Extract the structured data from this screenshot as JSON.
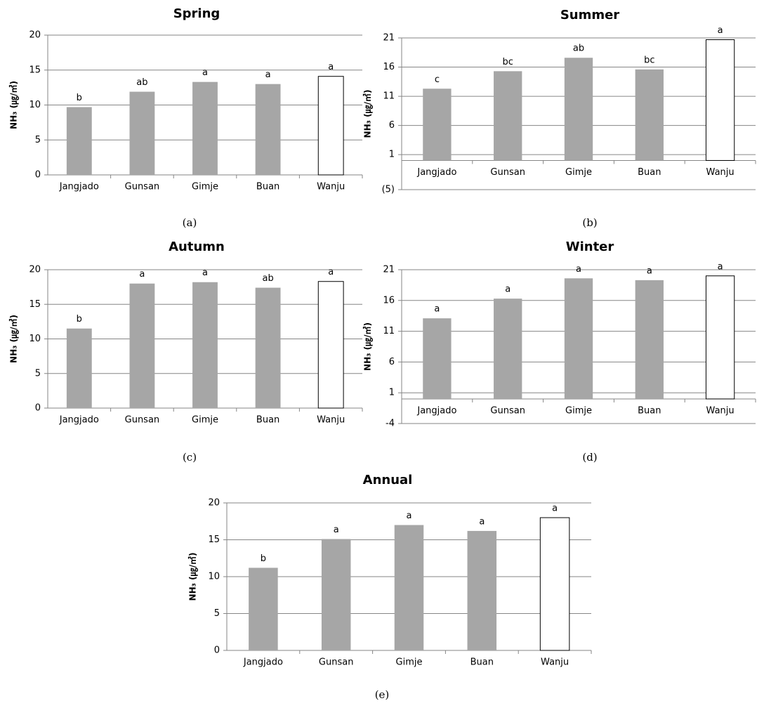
{
  "chart_data": [
    {
      "type": "bar",
      "title": "Spring",
      "y_label": "NH₃ (㎍/㎥)",
      "caption": "(a)",
      "categories": [
        "Jangjado",
        "Gunsan",
        "Gimje",
        "Buan",
        "Wanju"
      ],
      "values": [
        9.7,
        11.9,
        13.3,
        13.0,
        14.1
      ],
      "annotations": [
        "b",
        "ab",
        "a",
        "a",
        "a"
      ],
      "colors": [
        "#a6a6a6",
        "#a6a6a6",
        "#a6a6a6",
        "#a6a6a6",
        "#ffffff"
      ],
      "ylim": [
        0,
        20
      ],
      "yticks": [
        0,
        5,
        10,
        15,
        20
      ],
      "grid": true
    },
    {
      "type": "bar",
      "title": "Summer",
      "y_label": "NH₃ (㎍/㎥)",
      "caption": "(b)",
      "categories": [
        "Jangjado",
        "Gunsan",
        "Gimje",
        "Buan",
        "Wanju"
      ],
      "values": [
        12.3,
        15.3,
        17.6,
        15.6,
        20.7
      ],
      "annotations": [
        "c",
        "bc",
        "ab",
        "bc",
        "a"
      ],
      "colors": [
        "#a6a6a6",
        "#a6a6a6",
        "#a6a6a6",
        "#a6a6a6",
        "#ffffff"
      ],
      "ylim": [
        -5,
        21
      ],
      "yticks": [
        {
          "value": -5,
          "label": "(5)",
          "color": "#e03c31"
        },
        1,
        6,
        11,
        16,
        21
      ],
      "grid": true
    },
    {
      "type": "bar",
      "title": "Autumn",
      "y_label": "NH₃ (㎍/㎥)",
      "caption": "(c)",
      "categories": [
        "Jangjado",
        "Gunsan",
        "Gimje",
        "Buan",
        "Wanju"
      ],
      "values": [
        11.5,
        18.0,
        18.2,
        17.4,
        18.3
      ],
      "annotations": [
        "b",
        "a",
        "a",
        "ab",
        "a"
      ],
      "colors": [
        "#a6a6a6",
        "#a6a6a6",
        "#a6a6a6",
        "#a6a6a6",
        "#ffffff"
      ],
      "ylim": [
        0,
        20
      ],
      "yticks": [
        0,
        5,
        10,
        15,
        20
      ],
      "grid": true
    },
    {
      "type": "bar",
      "title": "Winter",
      "y_label": "NH₃ (㎍/㎥)",
      "caption": "(d)",
      "categories": [
        "Jangjado",
        "Gunsan",
        "Gimje",
        "Buan",
        "Wanju"
      ],
      "values": [
        13.1,
        16.3,
        19.6,
        19.3,
        20.0
      ],
      "annotations": [
        "a",
        "a",
        "a",
        "a",
        "a"
      ],
      "colors": [
        "#a6a6a6",
        "#a6a6a6",
        "#a6a6a6",
        "#a6a6a6",
        "#ffffff"
      ],
      "ylim": [
        -4,
        21
      ],
      "yticks": [
        -4,
        1,
        6,
        11,
        16,
        21
      ],
      "grid": true
    },
    {
      "type": "bar",
      "title": "Annual",
      "y_label": "NH₃ (㎍/㎥)",
      "caption": "(e)",
      "categories": [
        "Jangjado",
        "Gunsan",
        "Gimje",
        "Buan",
        "Wanju"
      ],
      "values": [
        11.2,
        15.1,
        17.0,
        16.2,
        18.0
      ],
      "annotations": [
        "b",
        "a",
        "a",
        "a",
        "a"
      ],
      "colors": [
        "#a6a6a6",
        "#a6a6a6",
        "#a6a6a6",
        "#a6a6a6",
        "#ffffff"
      ],
      "ylim": [
        0,
        20
      ],
      "yticks": [
        0,
        5,
        10,
        15,
        20
      ],
      "grid": true
    }
  ]
}
